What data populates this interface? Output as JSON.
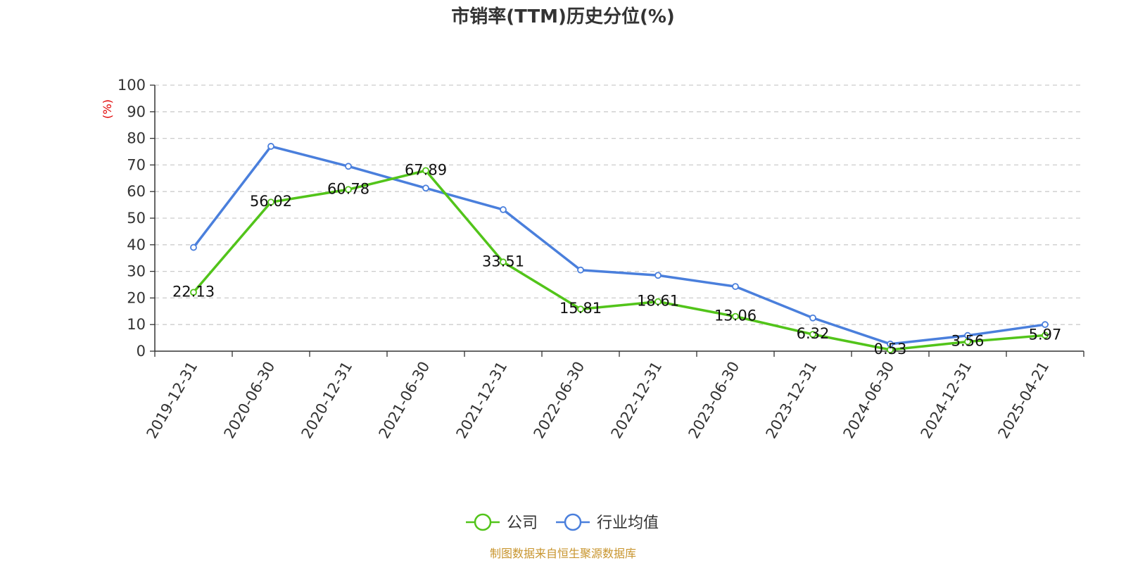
{
  "chart_data": {
    "type": "line",
    "title": "市销率(TTM)历史分位(%)",
    "ylabel": "(%)",
    "xlabel": "",
    "ylim": [
      0,
      100
    ],
    "yticks": [
      "0",
      "10",
      "20",
      "30",
      "40",
      "50",
      "60",
      "70",
      "80",
      "90",
      "100"
    ],
    "categories": [
      "2019-12-31",
      "2020-06-30",
      "2020-12-31",
      "2021-06-30",
      "2021-12-31",
      "2022-06-30",
      "2022-12-31",
      "2023-06-30",
      "2023-12-31",
      "2024-06-30",
      "2024-12-31",
      "2025-04-21"
    ],
    "series": [
      {
        "name": "公司",
        "color": "#52c41a",
        "values": [
          22.13,
          56.02,
          60.78,
          67.89,
          33.51,
          15.81,
          18.61,
          13.06,
          6.32,
          0.53,
          3.56,
          5.97
        ],
        "labels": [
          "22.13",
          "56.02",
          "60.78",
          "67.89",
          "33.51",
          "15.81",
          "18.61",
          "13.06",
          "6.32",
          "0.53",
          "3.56",
          "5.97"
        ]
      },
      {
        "name": "行业均值",
        "color": "#4a7fdc",
        "values": [
          39,
          77,
          69.5,
          61.3,
          53.2,
          30.5,
          28.5,
          24.3,
          12.5,
          2.7,
          5.9,
          10
        ]
      }
    ],
    "grid": true,
    "legend_position": "bottom-center",
    "source": "制图数据来自恒生聚源数据库"
  }
}
